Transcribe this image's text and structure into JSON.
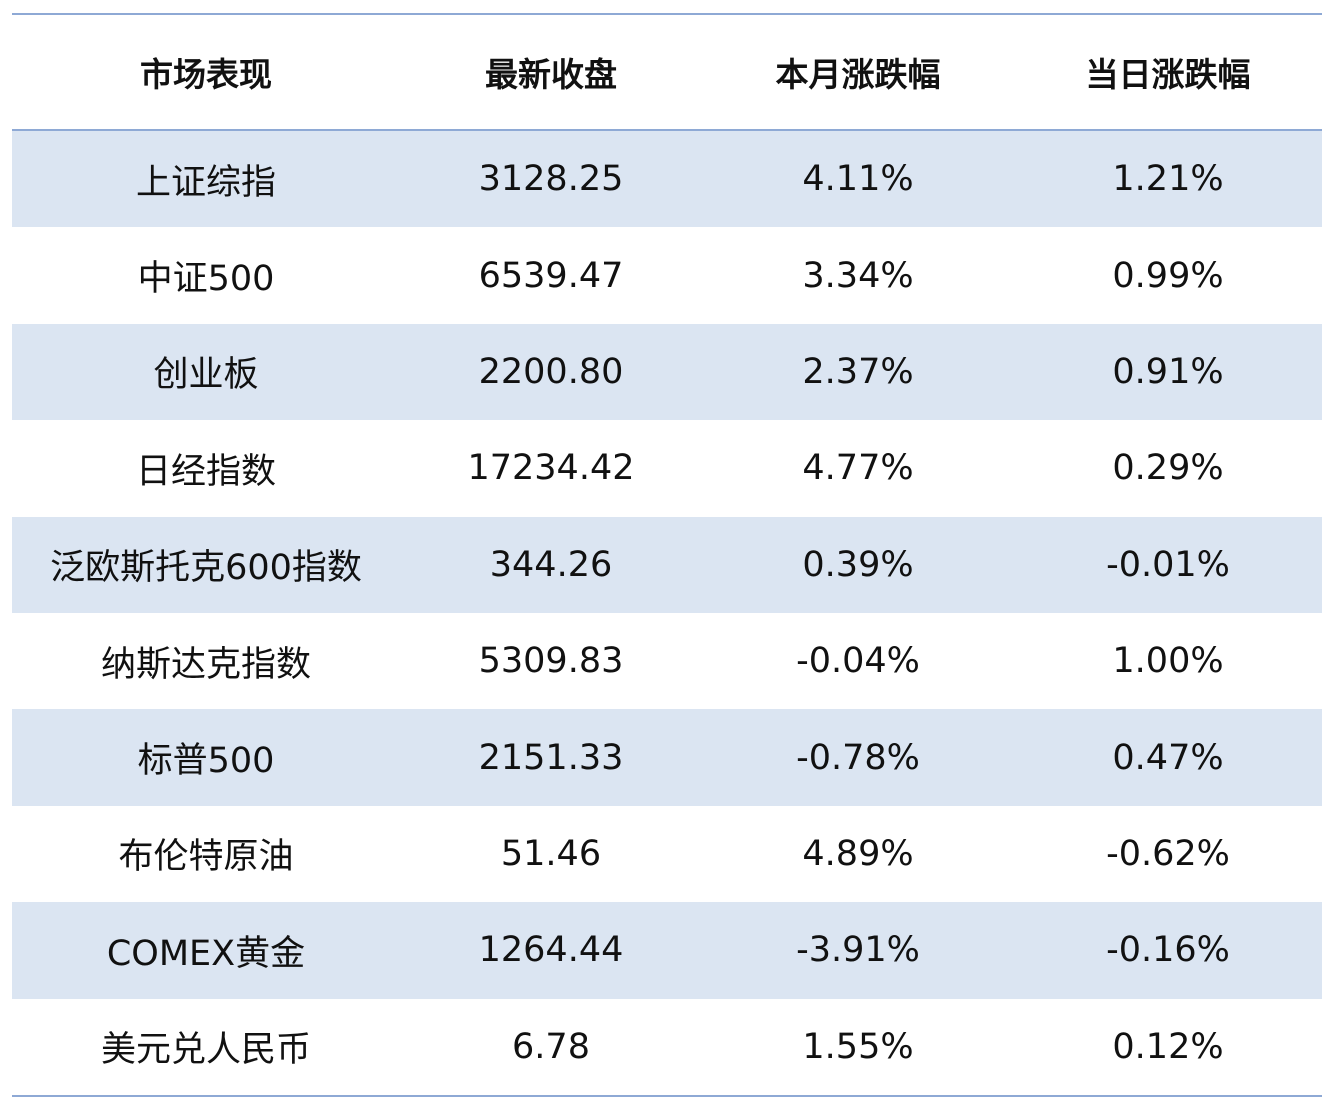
{
  "colors": {
    "rule": "#8ea9d5",
    "shaded_row": "#dbe5f2",
    "text": "#111111"
  },
  "chart_data": {
    "type": "table",
    "columns": [
      "市场表现",
      "最新收盘",
      "本月涨跌幅",
      "当日涨跌幅"
    ],
    "rows": [
      [
        "上证综指",
        "3128.25",
        "4.11%",
        "1.21%"
      ],
      [
        "中证500",
        "6539.47",
        "3.34%",
        "0.99%"
      ],
      [
        "创业板",
        "2200.80",
        "2.37%",
        "0.91%"
      ],
      [
        "日经指数",
        "17234.42",
        "4.77%",
        "0.29%"
      ],
      [
        "泛欧斯托克600指数",
        "344.26",
        "0.39%",
        "-0.01%"
      ],
      [
        "纳斯达克指数",
        "5309.83",
        "-0.04%",
        "1.00%"
      ],
      [
        "标普500",
        "2151.33",
        "-0.78%",
        "0.47%"
      ],
      [
        "布伦特原油",
        "51.46",
        "4.89%",
        "-0.62%"
      ],
      [
        "COMEX黄金",
        "1264.44",
        "-3.91%",
        "-0.16%"
      ],
      [
        "美元兑人民币",
        "6.78",
        "1.55%",
        "0.12%"
      ]
    ],
    "shaded_rows": [
      0,
      2,
      4,
      6,
      8
    ]
  }
}
